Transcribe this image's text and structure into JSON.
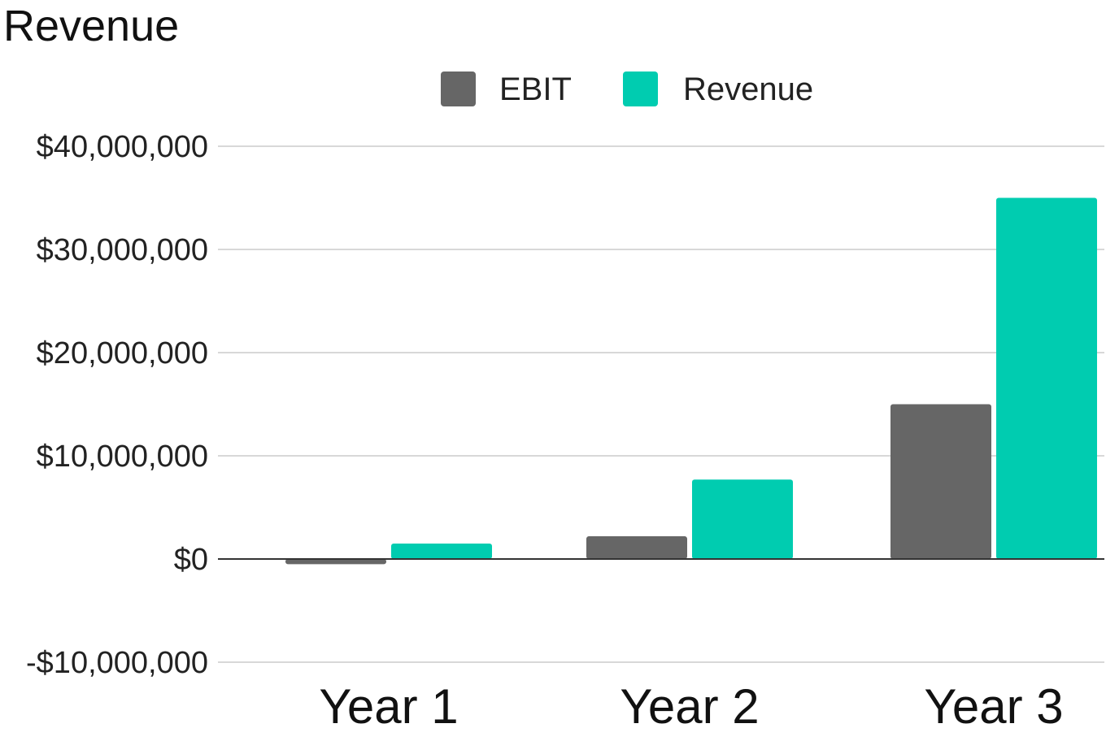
{
  "chart_data": {
    "type": "bar",
    "title": "Revenue",
    "xlabel": "",
    "ylabel": "",
    "categories": [
      "Year 1",
      "Year 2",
      "Year 3"
    ],
    "series": [
      {
        "name": "EBIT",
        "color": "#666666",
        "values": [
          -500000,
          2200000,
          15000000
        ]
      },
      {
        "name": "Revenue",
        "color": "#00CCB0",
        "values": [
          1500000,
          7700000,
          35000000
        ]
      }
    ],
    "ylim": [
      -10000000,
      40000000
    ],
    "y_ticks": [
      {
        "value": -10000000,
        "label": "-$10,000,000"
      },
      {
        "value": 0,
        "label": "$0"
      },
      {
        "value": 10000000,
        "label": "$10,000,000"
      },
      {
        "value": 20000000,
        "label": "$20,000,000"
      },
      {
        "value": 30000000,
        "label": "$30,000,000"
      },
      {
        "value": 40000000,
        "label": "$40,000,000"
      }
    ],
    "grid": true,
    "legend_position": "top-center",
    "gridline_color": "#CCCCCC",
    "zero_line_color": "#333333"
  }
}
